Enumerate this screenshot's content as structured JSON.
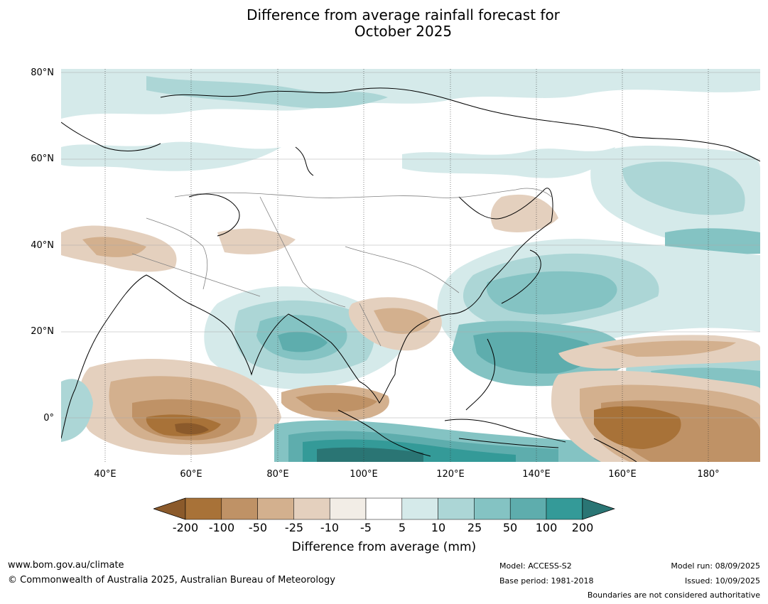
{
  "title_line1": "Difference from average rainfall forecast for",
  "title_line2": "October 2025",
  "lat_labels": [
    "80°N",
    "60°N",
    "40°N",
    "20°N",
    "0°"
  ],
  "lon_labels": [
    "40°E",
    "60°E",
    "80°E",
    "100°E",
    "120°E",
    "140°E",
    "160°E",
    "180°"
  ],
  "colorbar": {
    "ticks": [
      "-200",
      "-100",
      "-50",
      "-25",
      "-10",
      "-5",
      "5",
      "10",
      "25",
      "50",
      "100",
      "200"
    ],
    "colors": [
      "#8b5a2b",
      "#a87238",
      "#bf9266",
      "#d3b08e",
      "#e4d0be",
      "#f2ede6",
      "#ffffff",
      "#d5eaea",
      "#acd6d6",
      "#84c3c3",
      "#5eadad",
      "#349a98",
      "#2a7574"
    ],
    "label": "Difference from average (mm)"
  },
  "footer": {
    "website": "www.bom.gov.au/climate",
    "copyright": "© Commonwealth of Australia 2025, Australian Bureau of Meteorology",
    "model": "Model: ACCESS-S2",
    "base_period": "Base period: 1981-2018",
    "model_run": "Model run: 08/09/2025",
    "issued": "Issued: 10/09/2025",
    "boundaries": "Boundaries are not considered authoritative"
  }
}
